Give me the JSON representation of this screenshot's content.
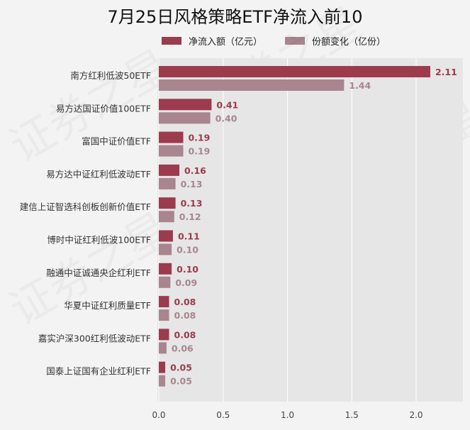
{
  "colors": {
    "net_inflow": "#9b3b4c",
    "share_change": "#a8858f",
    "plot_bg": "#e6e6e6",
    "grid": "#ffffff"
  },
  "chart_data": {
    "type": "bar",
    "orientation": "horizontal",
    "title": "7月25日风格策略ETF净流入前10",
    "categories": [
      "南方红利低波50ETF",
      "易方达国证价值100ETF",
      "富国中证价值ETF",
      "易方达中证红利低波动ETF",
      "建信上证智选科创板创新价值ETF",
      "博时中证红利低波100ETF",
      "融通中证诚通央企红利ETF",
      "华夏中证红利质量ETF",
      "嘉实沪深300红利低波动ETF",
      "国泰上证国有企业红利ETF"
    ],
    "series": [
      {
        "name": "净流入额（亿元）",
        "values": [
          2.11,
          0.41,
          0.19,
          0.16,
          0.13,
          0.11,
          0.1,
          0.08,
          0.08,
          0.05
        ],
        "labels": [
          "2.11",
          "0.41",
          "0.19",
          "0.16",
          "0.13",
          "0.11",
          "0.10",
          "0.08",
          "0.08",
          "0.05"
        ]
      },
      {
        "name": "份额变化（亿份）",
        "values": [
          1.44,
          0.4,
          0.19,
          0.13,
          0.12,
          0.1,
          0.09,
          0.08,
          0.06,
          0.05
        ],
        "labels": [
          "1.44",
          "0.40",
          "0.19",
          "0.13",
          "0.12",
          "0.10",
          "0.09",
          "0.08",
          "0.06",
          "0.05"
        ]
      }
    ],
    "xlim": [
      0,
      2.35
    ],
    "xticks": [
      "0.0",
      "0.5",
      "1.0",
      "1.5",
      "2.0"
    ],
    "xlabel": "",
    "ylabel": "",
    "grid": "vertical",
    "legend_position": "top"
  },
  "watermark": "证券之星"
}
